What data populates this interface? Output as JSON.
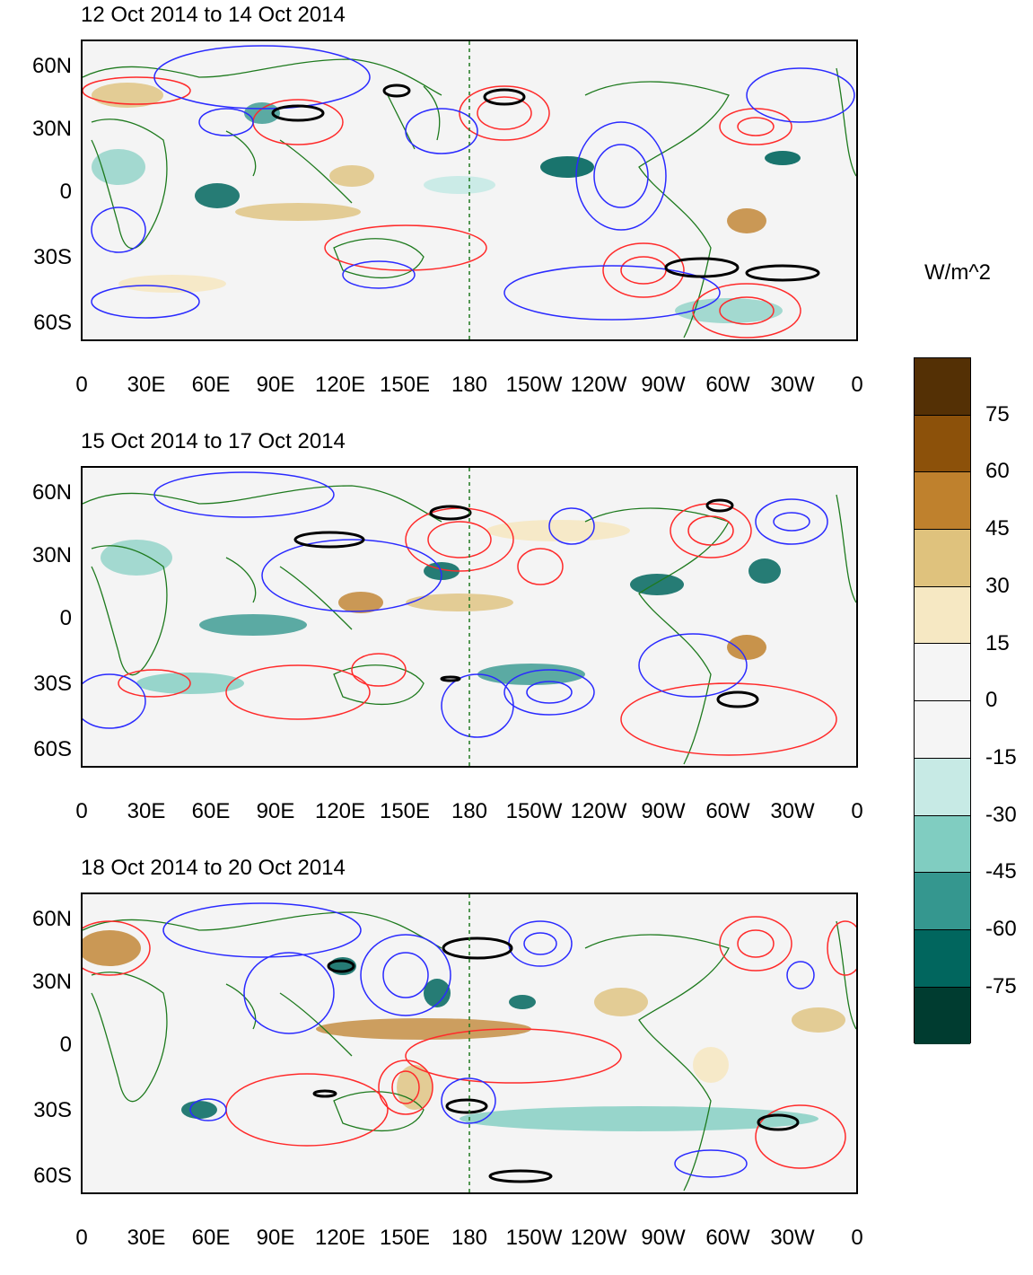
{
  "panels": [
    {
      "title": "12 Oct 2014 to 14 Oct 2014"
    },
    {
      "title": "15 Oct 2014 to 17 Oct 2014"
    },
    {
      "title": "18 Oct 2014 to 20 Oct 2014"
    }
  ],
  "lat_labels": [
    "60N",
    "30N",
    "0",
    "30S",
    "60S"
  ],
  "lon_labels": [
    "0",
    "30E",
    "60E",
    "90E",
    "120E",
    "150E",
    "180",
    "150W",
    "120W",
    "90W",
    "60W",
    "30W",
    "0"
  ],
  "colorbar": {
    "units": "W/m^2",
    "labels": [
      "75",
      "60",
      "45",
      "30",
      "15",
      "0",
      "-15",
      "-30",
      "-45",
      "-60",
      "-75"
    ],
    "colors": [
      "#543005",
      "#8c510a",
      "#bf812d",
      "#dfc27d",
      "#f6e8c3",
      "#f5f5f5",
      "#f5f5f5",
      "#c7eae5",
      "#80cdc1",
      "#35978f",
      "#01665e",
      "#003c30"
    ]
  },
  "colors": {
    "positive_contour": "#ff2a2a",
    "negative_contour": "#2a2aff",
    "significance_contour": "#000000",
    "coastline": "#1e7a1e",
    "background": "#f4f4f4"
  }
}
